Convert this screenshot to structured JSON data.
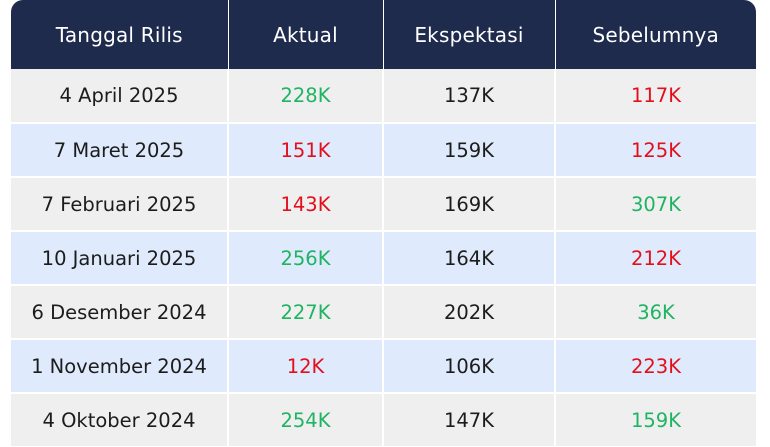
{
  "headers": [
    "Tanggal Rilis",
    "Aktual",
    "Ekspektasi",
    "Sebelumnya"
  ],
  "colors": {
    "header_bg": "#1e2b4d",
    "row_odd": "#efefef",
    "row_even": "#dfeafc",
    "positive": "#1fb462",
    "negative": "#e3101b"
  },
  "rows": [
    {
      "date": "4 April 2025",
      "actual": "228K",
      "actual_trend": "green",
      "expected": "137K",
      "previous": "117K",
      "previous_trend": "red"
    },
    {
      "date": "7 Maret 2025",
      "actual": "151K",
      "actual_trend": "red",
      "expected": "159K",
      "previous": "125K",
      "previous_trend": "red"
    },
    {
      "date": "7 Februari 2025",
      "actual": "143K",
      "actual_trend": "red",
      "expected": "169K",
      "previous": "307K",
      "previous_trend": "green"
    },
    {
      "date": "10 Januari 2025",
      "actual": "256K",
      "actual_trend": "green",
      "expected": "164K",
      "previous": "212K",
      "previous_trend": "red"
    },
    {
      "date": "6 Desember 2024",
      "actual": "227K",
      "actual_trend": "green",
      "expected": "202K",
      "previous": "36K",
      "previous_trend": "green"
    },
    {
      "date": "1 November 2024",
      "actual": "12K",
      "actual_trend": "red",
      "expected": "106K",
      "previous": "223K",
      "previous_trend": "red"
    },
    {
      "date": "4 Oktober 2024",
      "actual": "254K",
      "actual_trend": "green",
      "expected": "147K",
      "previous": "159K",
      "previous_trend": "green"
    }
  ]
}
